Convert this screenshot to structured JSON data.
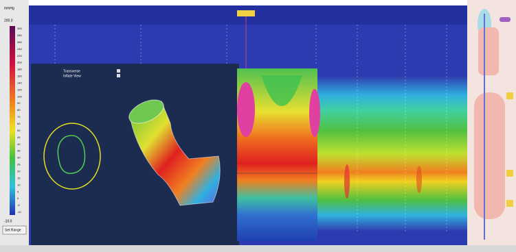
{
  "scale": {
    "unit": "mmHg",
    "max": "200.0",
    "min": "-10.0",
    "button": "Set Range",
    "labels": [
      "300",
      "280",
      "260",
      "240",
      "220",
      "200",
      "180",
      "160",
      "140",
      "120",
      "100",
      "90",
      "80",
      "70",
      "60",
      "50",
      "45",
      "40",
      "35",
      "30",
      "25",
      "20",
      "15",
      "10",
      "5",
      "0",
      "-5",
      "-10"
    ]
  },
  "overlay": {
    "options": [
      "Transverse",
      "Inflate View"
    ]
  }
}
